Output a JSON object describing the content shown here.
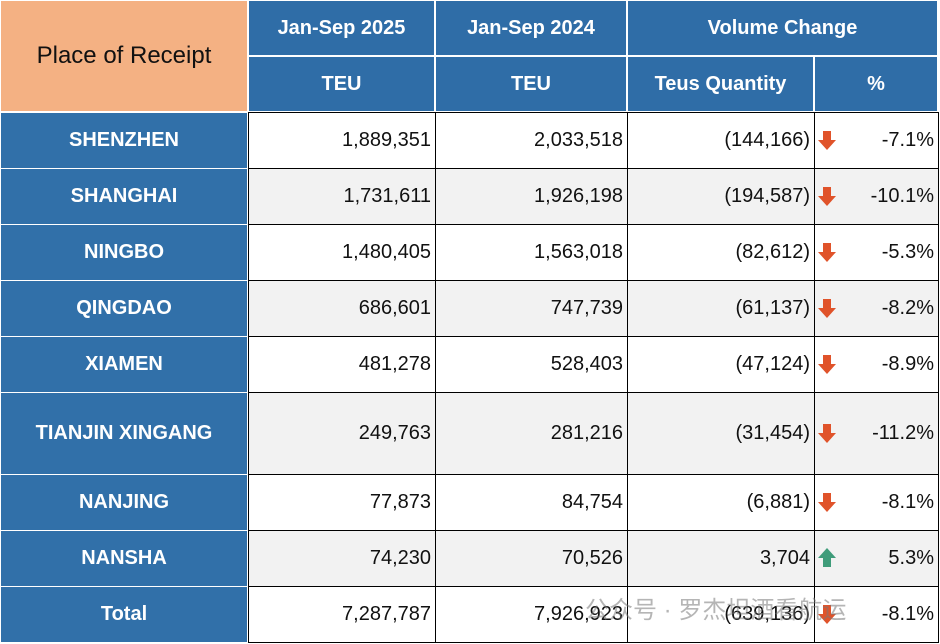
{
  "header": {
    "place": "Place of Receipt",
    "col2025": "Jan-Sep 2025",
    "col2024": "Jan-Sep 2024",
    "change": "Volume Change",
    "teu2025": "TEU",
    "teu2024": "TEU",
    "quantity": "Teus Quantity",
    "pct": "%"
  },
  "table": {
    "rows": [
      [
        "SHENZHEN",
        "1,889,351",
        "2,033,518",
        "(144,166)",
        "-7.1%"
      ],
      [
        "SHANGHAI",
        "1,731,611",
        "1,926,198",
        "(194,587)",
        "-10.1%"
      ],
      [
        "NINGBO",
        "1,480,405",
        "1,563,018",
        "(82,612)",
        "-5.3%"
      ],
      [
        "QINGDAO",
        "686,601",
        "747,739",
        "(61,137)",
        "-8.2%"
      ],
      [
        "XIAMEN",
        "481,278",
        "528,403",
        "(47,124)",
        "-8.9%"
      ],
      [
        "TIANJIN XINGANG",
        "249,763",
        "281,216",
        "(31,454)",
        "-11.2%"
      ],
      [
        "NANJING",
        "77,873",
        "84,754",
        "(6,881)",
        "-8.1%"
      ],
      [
        "NANSHA",
        "74,230",
        "70,526",
        "3,704",
        "5.3%"
      ],
      [
        "Total",
        "7,287,787",
        "7,926,923",
        "(639,136)",
        "-8.1%"
      ]
    ]
  },
  "watermark": "公众号 · 罗杰坦酒看航运"
}
